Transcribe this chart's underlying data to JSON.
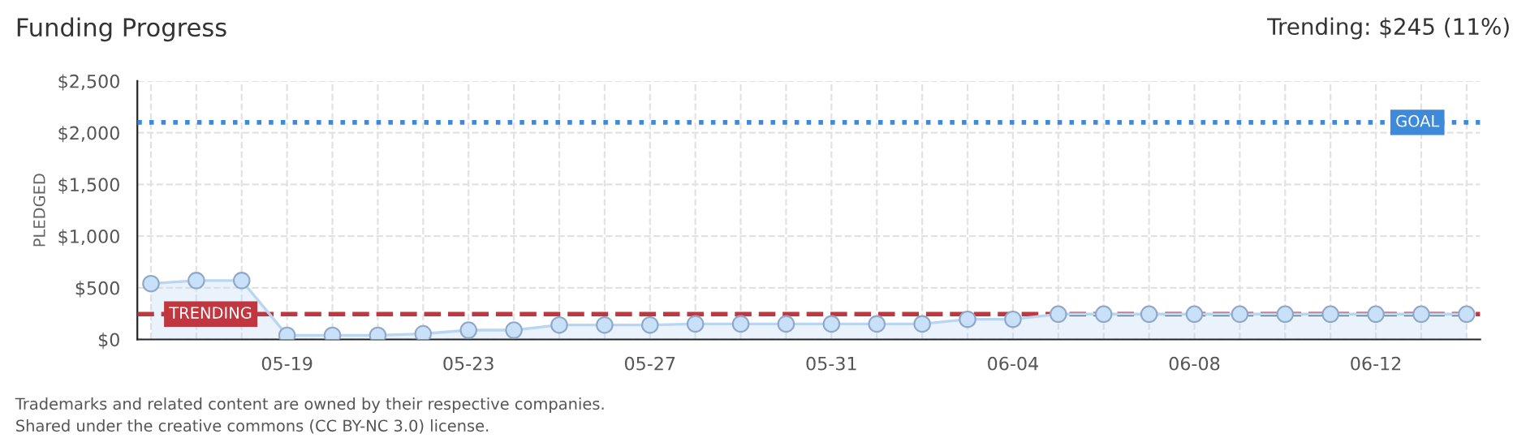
{
  "chart_data": {
    "type": "area",
    "title": "Funding Progress",
    "ylabel": "PLEDGED",
    "categories": [
      null,
      null,
      null,
      "05-19",
      null,
      null,
      null,
      "05-23",
      null,
      null,
      null,
      "05-27",
      null,
      null,
      null,
      "05-31",
      null,
      null,
      null,
      "06-04",
      null,
      null,
      null,
      "06-08",
      null,
      null,
      null,
      "06-12",
      null,
      null
    ],
    "series": [
      {
        "color": "#b8d6f4",
        "values": [
          540,
          570,
          570,
          40,
          40,
          40,
          55,
          90,
          90,
          140,
          140,
          140,
          150,
          150,
          150,
          150,
          150,
          150,
          195,
          195,
          245,
          245,
          245,
          245,
          245,
          245,
          245,
          245,
          245,
          245
        ]
      }
    ],
    "ylim": [
      0,
      2500
    ],
    "yticks": [
      {
        "value": 0,
        "label": "$0"
      },
      {
        "value": 500,
        "label": "$500"
      },
      {
        "value": 1000,
        "label": "$1,000"
      },
      {
        "value": 1500,
        "label": "$1,500"
      },
      {
        "value": 2000,
        "label": "$2,000"
      },
      {
        "value": 2500,
        "label": "$2,500"
      }
    ],
    "ref_lines": [
      {
        "axis": "y",
        "value": 2100,
        "label": "GOAL",
        "color": "#3f8ad8",
        "line_style": "dotted"
      },
      {
        "axis": "y",
        "value": 245,
        "label": "TRENDING",
        "color": "#c0373f",
        "line_style": "dashed"
      }
    ],
    "annotations": [
      "Trending: $245 (11%)",
      "Trademarks and related content are owned by their respective companies.",
      "Shared under the creative commons (CC BY-NC 3.0) license."
    ],
    "grid": true,
    "legend": false,
    "marker": "circle",
    "line_style": "solid"
  }
}
